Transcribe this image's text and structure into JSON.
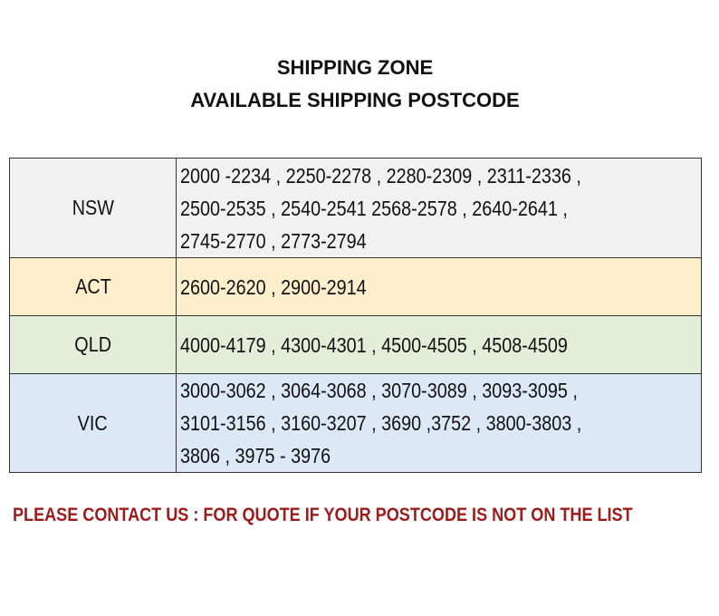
{
  "title": {
    "line1": "SHIPPING  ZONE",
    "line2": "AVAILABLE SHIPPING POSTCODE"
  },
  "zones": [
    {
      "state": "NSW",
      "lines": [
        "2000 -2234 , 2250-2278 , 2280-2309 , 2311-2336 ,",
        "2500-2535 , 2540-2541 2568-2578 , 2640-2641 ,",
        "2745-2770 , 2773-2794"
      ],
      "color": "#f1f1f2"
    },
    {
      "state": "ACT",
      "lines": [
        "2600-2620 , 2900-2914"
      ],
      "color": "#fdefcc"
    },
    {
      "state": "QLD",
      "lines": [
        "4000-4179 , 4300-4301 , 4500-4505 , 4508-4509"
      ],
      "color": "#e3edd8"
    },
    {
      "state": "VIC",
      "lines": [
        "3000-3062 , 3064-3068 , 3070-3089 , 3093-3095 ,",
        "3101-3156 , 3160-3207 , 3690 ,3752 , 3800-3803 ,",
        "3806 , 3975 - 3976"
      ],
      "color": "#dce8f5"
    }
  ],
  "footer": {
    "text": "PLEASE CONTACT US : FOR QUOTE IF YOUR POSTCODE IS NOT ON THE LIST",
    "color": "#9b1c1c"
  }
}
